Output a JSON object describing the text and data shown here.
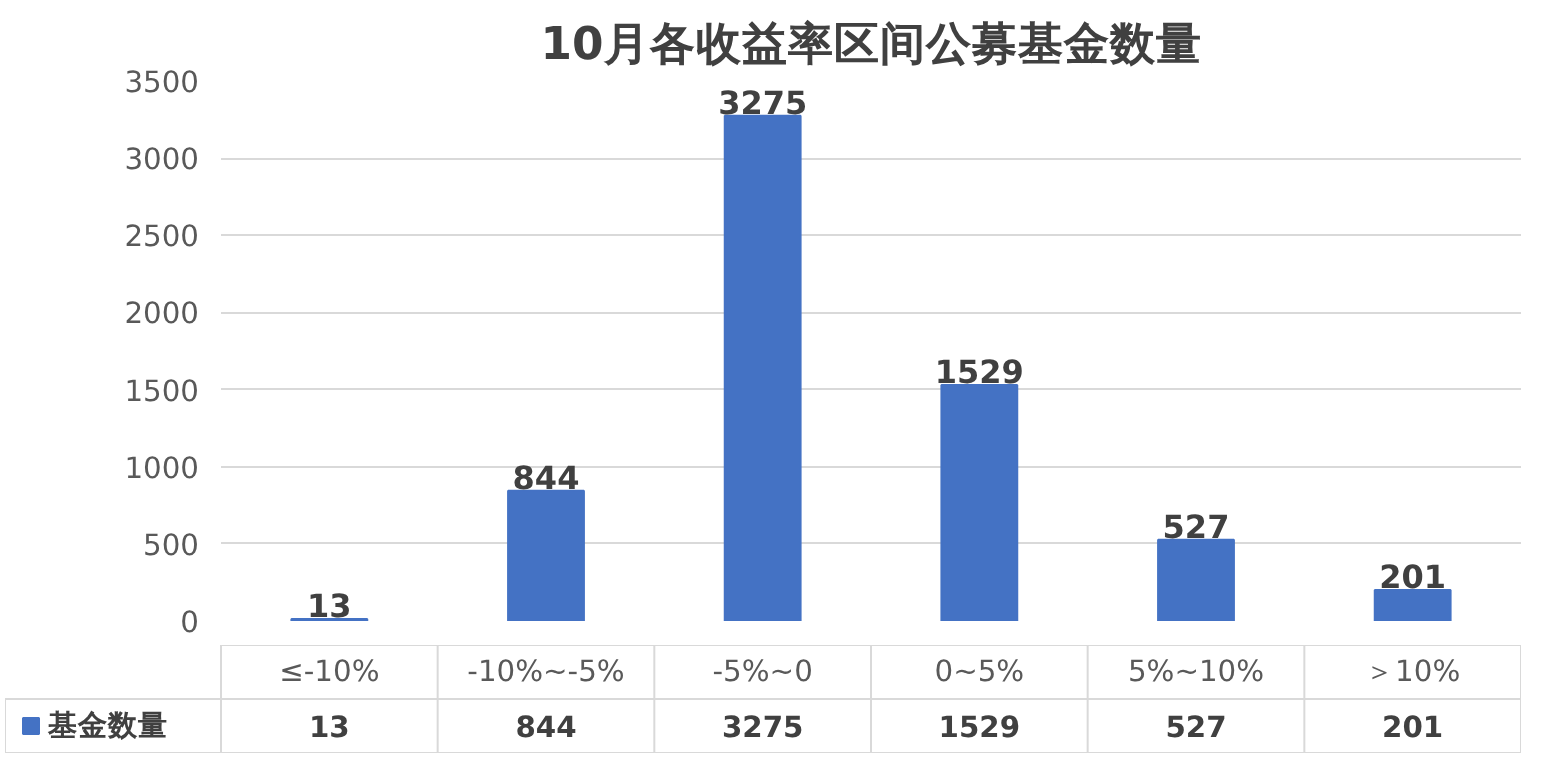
{
  "chart_data": [
    {
      "type": "bar",
      "title": "10月各收益率区间公募基金数量",
      "categories": [
        null,
        null,
        null,
        null,
        null,
        null
      ],
      "series": [
        {
          "color": "#4472c4",
          "values": [
            13,
            844,
            3275,
            1529,
            527,
            201
          ],
          "value_labels": [
            "13",
            "844",
            "3275",
            "1529",
            "527",
            "201"
          ]
        }
      ],
      "ylim": [
        0,
        3500
      ],
      "yticks": [
        0,
        500,
        1000,
        1500,
        2000,
        2500,
        3000,
        3500
      ],
      "grid": "y"
    },
    {
      "type": "other",
      "categories": [
        "≤-10%",
        "-10%~-5%",
        "-5%~0",
        "0~5%",
        "5%~10%",
        "＞10%"
      ],
      "series": [
        {
          "name": "基金数量",
          "color": "#4472c4",
          "values": [
            13,
            844,
            3275,
            1529,
            527,
            201
          ]
        }
      ],
      "legend": "left",
      "data_labels": true
    }
  ]
}
